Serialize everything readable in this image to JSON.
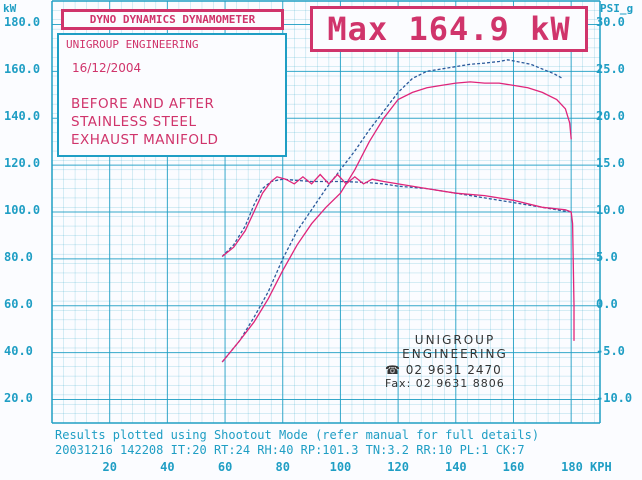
{
  "header": {
    "title": "DYNO DYNAMICS DYNAMOMETER",
    "max_text": "Max 164.9 kW"
  },
  "info": {
    "company": "UNIGROUP ENGINEERING",
    "date": "16/12/2004",
    "lines": [
      "BEFORE AND AFTER",
      "STAINLESS STEEL",
      "EXHAUST MANIFOLD"
    ]
  },
  "stamp": {
    "line1": "UNIGROUP",
    "line2": "ENGINEERING",
    "phone": "02 9631 2470",
    "fax": "Fax: 02 9631 8806",
    "phone_icon": "telephone-icon"
  },
  "footer": {
    "line1": "Results plotted using Shootout Mode (refer manual for full details)",
    "line2": "20031216 142208 IT:20 RT:24 RH:40 RP:101.3 TN:3.2 RR:10 PL:1 CK:7"
  },
  "colors": {
    "grid": "#1f9ec4",
    "run_blue": "#2b5a9c",
    "run_pink": "#e0257a",
    "accent": "#d0346b"
  },
  "chart_data": {
    "type": "line",
    "xlabel": "KPH",
    "ylabel_left": "kW",
    "ylabel_right": "PSI_g",
    "xlim": [
      0,
      190
    ],
    "ylim_left": [
      10,
      190
    ],
    "ylim_right": [
      -15,
      35
    ],
    "x_ticks": [
      20,
      40,
      60,
      80,
      100,
      120,
      140,
      160,
      180
    ],
    "x_tick_labels": [
      "20",
      "40",
      "60",
      "80",
      "100",
      "120",
      "140",
      "160",
      "180 KPH"
    ],
    "y_ticks_left": [
      20,
      40,
      60,
      80,
      100,
      120,
      140,
      160,
      180
    ],
    "y_tick_labels_left": [
      "20.0",
      "40.0",
      "60.0",
      "80.0",
      "100.0",
      "120.0",
      "140.0",
      "160.0",
      "180.0"
    ],
    "y_tick_labels_right": [
      "-10.0",
      "-5.0",
      "0.0",
      "5.0",
      "10.0",
      "15.0",
      "20.0",
      "25.0",
      "30.0"
    ],
    "grid": true,
    "series": [
      {
        "color": "#2b5a9c",
        "dash": "3,2",
        "points": [
          [
            59,
            36
          ],
          [
            65,
            45
          ],
          [
            70,
            55
          ],
          [
            75,
            66
          ],
          [
            80,
            80
          ],
          [
            85,
            92
          ],
          [
            90,
            101
          ],
          [
            95,
            110
          ],
          [
            100,
            118
          ],
          [
            105,
            126
          ],
          [
            110,
            135
          ],
          [
            115,
            143
          ],
          [
            120,
            151
          ],
          [
            125,
            157
          ],
          [
            130,
            160
          ],
          [
            135,
            161
          ],
          [
            140,
            162
          ],
          [
            145,
            163
          ],
          [
            150,
            163.5
          ],
          [
            155,
            164.2
          ],
          [
            158,
            164.9
          ],
          [
            162,
            164
          ],
          [
            166,
            163
          ],
          [
            170,
            161
          ],
          [
            174,
            159
          ],
          [
            177,
            157
          ]
        ]
      },
      {
        "color": "#e0257a",
        "dash": "",
        "points": [
          [
            59,
            36
          ],
          [
            65,
            45
          ],
          [
            70,
            53
          ],
          [
            75,
            63
          ],
          [
            80,
            75
          ],
          [
            85,
            86
          ],
          [
            90,
            95
          ],
          [
            95,
            102
          ],
          [
            100,
            108
          ],
          [
            105,
            118
          ],
          [
            110,
            130
          ],
          [
            115,
            140
          ],
          [
            120,
            148
          ],
          [
            125,
            151
          ],
          [
            130,
            153
          ],
          [
            135,
            154
          ],
          [
            140,
            155
          ],
          [
            145,
            155.5
          ],
          [
            150,
            155
          ],
          [
            155,
            155
          ],
          [
            160,
            154
          ],
          [
            165,
            153
          ],
          [
            170,
            151
          ],
          [
            175,
            148
          ],
          [
            178,
            144
          ],
          [
            179.5,
            138
          ],
          [
            180,
            131
          ]
        ]
      },
      {
        "color": "#2b5a9c",
        "dash": "3,2",
        "points": [
          [
            59,
            81
          ],
          [
            63,
            86
          ],
          [
            67,
            94
          ],
          [
            70,
            103
          ],
          [
            73,
            110
          ],
          [
            76,
            113
          ],
          [
            80,
            114
          ],
          [
            85,
            113.5
          ],
          [
            90,
            113
          ],
          [
            95,
            113
          ],
          [
            100,
            113
          ],
          [
            105,
            112.8
          ],
          [
            110,
            112.5
          ],
          [
            115,
            112
          ],
          [
            120,
            111
          ],
          [
            130,
            110
          ],
          [
            140,
            108
          ],
          [
            150,
            106
          ],
          [
            160,
            104
          ],
          [
            170,
            102
          ],
          [
            177,
            100.5
          ],
          [
            180,
            100
          ]
        ]
      },
      {
        "color": "#e0257a",
        "dash": "",
        "points": [
          [
            59,
            81
          ],
          [
            63,
            85
          ],
          [
            67,
            92
          ],
          [
            70,
            100
          ],
          [
            73,
            108
          ],
          [
            76,
            113
          ],
          [
            78,
            115
          ],
          [
            81,
            114
          ],
          [
            84,
            112
          ],
          [
            87,
            115
          ],
          [
            90,
            112
          ],
          [
            93,
            116
          ],
          [
            96,
            112
          ],
          [
            99,
            116
          ],
          [
            102,
            112
          ],
          [
            105,
            115
          ],
          [
            108,
            112
          ],
          [
            111,
            114
          ],
          [
            115,
            113
          ],
          [
            120,
            112
          ],
          [
            130,
            110
          ],
          [
            140,
            108
          ],
          [
            150,
            107
          ],
          [
            160,
            105
          ],
          [
            170,
            102
          ],
          [
            178,
            101
          ],
          [
            180,
            100
          ],
          [
            180.5,
            95
          ],
          [
            181,
            60
          ],
          [
            181,
            45
          ]
        ]
      }
    ]
  }
}
